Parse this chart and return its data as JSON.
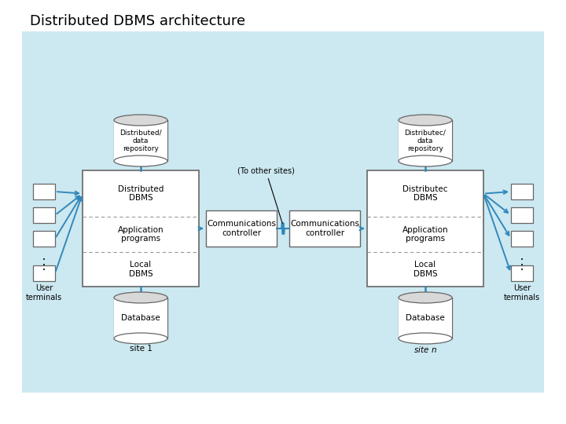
{
  "title": "Distributed DBMS architecture",
  "bg_color": "#cce8f0",
  "box_color": "#ffffff",
  "box_edge_color": "#666666",
  "dashed_color": "#999999",
  "arrow_color": "#3388bb",
  "line_color": "#000000",
  "site1_repo_label": "Distributed/\ndata\nrepository",
  "siten_repo_label": "Distributec/\ndata\nrepository",
  "site1_dbms_label": "Distributed\nDBMS",
  "siten_dbms_label": "Distributec\nDBMS",
  "site1_app_label": "Application\nprograms",
  "siten_app_label": "Application\nprograms",
  "site1_local_label": "Local\nDBMS",
  "siten_local_label": "Local\nDBMS",
  "site1_db_label": "Database",
  "siten_db_label": "Database",
  "site1_label": "site 1",
  "siten_label": "site n",
  "comm1_label": "Communications\ncontroller",
  "comm2_label": "Communications\ncontroller",
  "user_terminals_label": "User\nterminals",
  "to_other_sites_label": "(To other sites)"
}
